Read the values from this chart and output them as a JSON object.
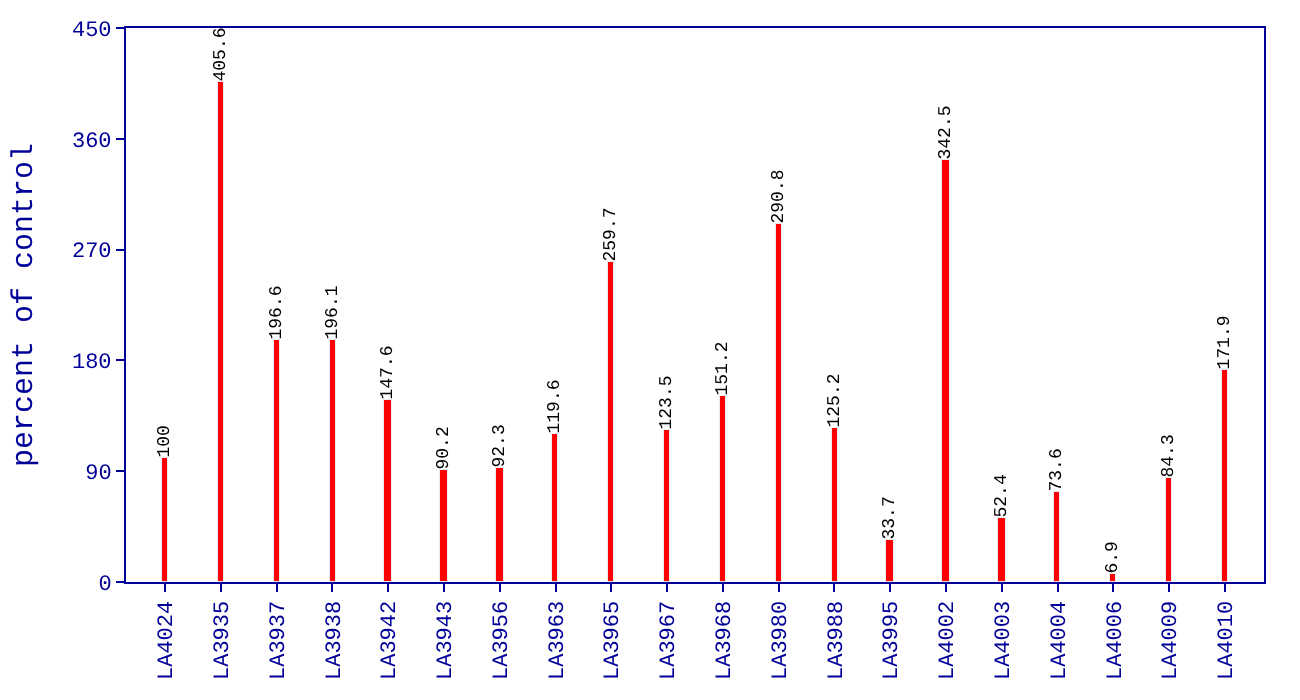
{
  "chart_data": {
    "type": "bar",
    "ylabel": "percent of control",
    "categories": [
      "LA4024",
      "LA3935",
      "LA3937",
      "LA3938",
      "LA3942",
      "LA3943",
      "LA3956",
      "LA3963",
      "LA3965",
      "LA3967",
      "LA3968",
      "LA3980",
      "LA3988",
      "LA3995",
      "LA4002",
      "LA4003",
      "LA4004",
      "LA4006",
      "LA4009",
      "LA4010"
    ],
    "values": [
      100,
      405.6,
      196.6,
      196.1,
      147.6,
      90.2,
      92.3,
      119.6,
      259.7,
      123.5,
      151.2,
      290.8,
      125.2,
      33.7,
      342.5,
      52.4,
      73.6,
      6.9,
      84.3,
      171.9
    ],
    "color": "#ff0000",
    "ylim": [
      0,
      450
    ],
    "yticks": [
      0,
      90,
      180,
      270,
      360,
      450
    ],
    "data_labels": true,
    "legend": false
  }
}
